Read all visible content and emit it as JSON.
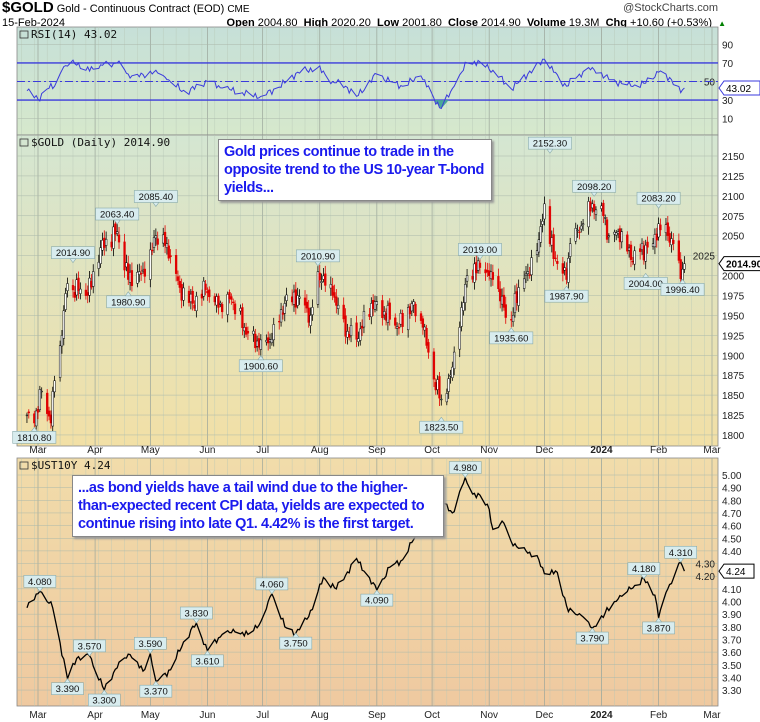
{
  "header": {
    "symbol": "$GOLD",
    "name": "Gold - Continuous Contract (EOD)",
    "exchange": "CME",
    "date": "15-Feb-2024",
    "watermark": "@StockCharts.com",
    "open_label": "Open",
    "open": "2004.80",
    "high_label": "High",
    "high": "2020.20",
    "low_label": "Low",
    "low": "2001.80",
    "close_label": "Close",
    "close": "2014.90",
    "volume_label": "Volume",
    "volume": "19.3M",
    "chg_label": "Chg",
    "chg": "+10.60 (+0.53%)",
    "up_color": "#008000"
  },
  "annotations": {
    "gold_note": "Gold prices continue to trade in the opposite trend to the US 10-year T-bond yields...",
    "yield_note": "...as bond yields have a tail wind due to the higher-than-expected recent CPI data, yields are expected to continue rising into late Q1. 4.42% is the first target."
  },
  "x_axis": {
    "ticks": [
      {
        "date": "2023-03-01",
        "label": "Mar"
      },
      {
        "date": "2023-04-01",
        "label": "Apr"
      },
      {
        "date": "2023-05-01",
        "label": "May"
      },
      {
        "date": "2023-06-01",
        "label": "Jun"
      },
      {
        "date": "2023-07-01",
        "label": "Jul"
      },
      {
        "date": "2023-08-01",
        "label": "Aug"
      },
      {
        "date": "2023-09-01",
        "label": "Sep"
      },
      {
        "date": "2023-10-01",
        "label": "Oct"
      },
      {
        "date": "2023-11-01",
        "label": "Nov"
      },
      {
        "date": "2023-12-01",
        "label": "Dec"
      },
      {
        "date": "2024-01-01",
        "label": "2024",
        "bold": true
      },
      {
        "date": "2024-02-01",
        "label": "Feb"
      },
      {
        "date": "2024-03-01",
        "label": "Mar"
      }
    ]
  },
  "chart_data": [
    {
      "type": "line",
      "title": "RSI(14) 43.02",
      "last_value": "43.02",
      "ylim": [
        0,
        100
      ],
      "yticks": [
        10,
        30,
        50,
        70,
        90
      ],
      "reference_lines": [
        70,
        50,
        30
      ],
      "line_color": "#3a3adc",
      "background": [
        "#c6e0d8",
        "#d6e8cc"
      ],
      "points": [
        [
          "2023-02-23",
          40
        ],
        [
          "2023-03-01",
          31
        ],
        [
          "2023-03-06",
          42
        ],
        [
          "2023-03-10",
          45
        ],
        [
          "2023-03-14",
          62
        ],
        [
          "2023-03-20",
          73
        ],
        [
          "2023-03-27",
          62
        ],
        [
          "2023-04-04",
          68
        ],
        [
          "2023-04-13",
          70
        ],
        [
          "2023-04-19",
          58
        ],
        [
          "2023-04-25",
          55
        ],
        [
          "2023-05-04",
          62
        ],
        [
          "2023-05-10",
          52
        ],
        [
          "2023-05-20",
          38
        ],
        [
          "2023-06-01",
          50
        ],
        [
          "2023-06-09",
          43
        ],
        [
          "2023-06-20",
          38
        ],
        [
          "2023-06-30",
          34
        ],
        [
          "2023-07-10",
          44
        ],
        [
          "2023-07-20",
          60
        ],
        [
          "2023-07-31",
          65
        ],
        [
          "2023-08-08",
          50
        ],
        [
          "2023-08-15",
          45
        ],
        [
          "2023-08-21",
          34
        ],
        [
          "2023-09-01",
          58
        ],
        [
          "2023-09-08",
          50
        ],
        [
          "2023-09-15",
          45
        ],
        [
          "2023-09-25",
          56
        ],
        [
          "2023-10-02",
          32
        ],
        [
          "2023-10-06",
          21
        ],
        [
          "2023-10-13",
          45
        ],
        [
          "2023-10-20",
          70
        ],
        [
          "2023-10-27",
          71
        ],
        [
          "2023-11-03",
          62
        ],
        [
          "2023-11-13",
          42
        ],
        [
          "2023-11-22",
          58
        ],
        [
          "2023-12-01",
          74
        ],
        [
          "2023-12-06",
          60
        ],
        [
          "2023-12-13",
          45
        ],
        [
          "2023-12-20",
          58
        ],
        [
          "2023-12-27",
          65
        ],
        [
          "2024-01-05",
          52
        ],
        [
          "2024-01-17",
          45
        ],
        [
          "2024-01-24",
          48
        ],
        [
          "2024-02-01",
          60
        ],
        [
          "2024-02-08",
          52
        ],
        [
          "2024-02-13",
          38
        ],
        [
          "2024-02-15",
          43.02
        ]
      ]
    },
    {
      "type": "candlestick",
      "title": "$GOLD (Daily) 2014.90",
      "last_value": "2014.90",
      "ylim": [
        1795,
        2170
      ],
      "yticks": [
        1800,
        1825,
        1850,
        1875,
        1900,
        1925,
        1950,
        1975,
        2000,
        2025,
        2050,
        2075,
        2100,
        2125,
        2150
      ],
      "up_color": "#000000",
      "down_color": "#e00000",
      "background": [
        "#d4e6d2",
        "#f2e0a6"
      ],
      "closes": [
        [
          "2023-02-23",
          1825
        ],
        [
          "2023-02-27",
          1815
        ],
        [
          "2023-03-03",
          1855
        ],
        [
          "2023-03-08",
          1815
        ],
        [
          "2023-03-10",
          1868
        ],
        [
          "2023-03-13",
          1912
        ],
        [
          "2023-03-17",
          1990
        ],
        [
          "2023-03-20",
          1982
        ],
        [
          "2023-03-24",
          1983
        ],
        [
          "2023-03-28",
          1975
        ],
        [
          "2023-04-04",
          2035
        ],
        [
          "2023-04-13",
          2055
        ],
        [
          "2023-04-19",
          1995
        ],
        [
          "2023-04-25",
          2005
        ],
        [
          "2023-04-28",
          1999
        ],
        [
          "2023-05-04",
          2050
        ],
        [
          "2023-05-10",
          2040
        ],
        [
          "2023-05-17",
          1985
        ],
        [
          "2023-05-24",
          1965
        ],
        [
          "2023-05-31",
          1982
        ],
        [
          "2023-06-07",
          1960
        ],
        [
          "2023-06-14",
          1970
        ],
        [
          "2023-06-21",
          1935
        ],
        [
          "2023-06-29",
          1910
        ],
        [
          "2023-07-06",
          1920
        ],
        [
          "2023-07-13",
          1965
        ],
        [
          "2023-07-20",
          1975
        ],
        [
          "2023-07-27",
          1950
        ],
        [
          "2023-07-31",
          2005
        ],
        [
          "2023-08-08",
          1975
        ],
        [
          "2023-08-16",
          1930
        ],
        [
          "2023-08-21",
          1920
        ],
        [
          "2023-08-29",
          1965
        ],
        [
          "2023-09-05",
          1955
        ],
        [
          "2023-09-13",
          1935
        ],
        [
          "2023-09-20",
          1965
        ],
        [
          "2023-09-26",
          1935
        ],
        [
          "2023-10-02",
          1870
        ],
        [
          "2023-10-06",
          1845
        ],
        [
          "2023-10-11",
          1875
        ],
        [
          "2023-10-16",
          1935
        ],
        [
          "2023-10-20",
          2000
        ],
        [
          "2023-10-27",
          2010
        ],
        [
          "2023-11-03",
          1995
        ],
        [
          "2023-11-09",
          1960
        ],
        [
          "2023-11-13",
          1945
        ],
        [
          "2023-11-17",
          1985
        ],
        [
          "2023-11-22",
          2005
        ],
        [
          "2023-11-28",
          2045
        ],
        [
          "2023-12-01",
          2090
        ],
        [
          "2023-12-04",
          2040
        ],
        [
          "2023-12-08",
          2015
        ],
        [
          "2023-12-13",
          1995
        ],
        [
          "2023-12-15",
          2040
        ],
        [
          "2023-12-22",
          2065
        ],
        [
          "2023-12-27",
          2090
        ],
        [
          "2024-01-02",
          2075
        ],
        [
          "2024-01-05",
          2050
        ],
        [
          "2024-01-12",
          2055
        ],
        [
          "2024-01-17",
          2020
        ],
        [
          "2024-01-22",
          2030
        ],
        [
          "2024-01-29",
          2040
        ],
        [
          "2024-02-01",
          2065
        ],
        [
          "2024-02-06",
          2050
        ],
        [
          "2024-02-09",
          2040
        ],
        [
          "2024-02-13",
          1996
        ],
        [
          "2024-02-15",
          2014.9
        ]
      ],
      "labels": [
        {
          "date": "2023-02-27",
          "value": "1810.80",
          "pos": "below"
        },
        {
          "date": "2023-03-20",
          "value": "2014.90",
          "pos": "above"
        },
        {
          "date": "2023-04-13",
          "value": "2063.40",
          "pos": "above"
        },
        {
          "date": "2023-04-19",
          "value": "1980.90",
          "pos": "below"
        },
        {
          "date": "2023-05-04",
          "value": "2085.40",
          "pos": "above"
        },
        {
          "date": "2023-06-30",
          "value": "1900.60",
          "pos": "below"
        },
        {
          "date": "2023-07-31",
          "value": "2010.90",
          "pos": "above"
        },
        {
          "date": "2023-10-06",
          "value": "1823.50",
          "pos": "below"
        },
        {
          "date": "2023-10-27",
          "value": "2019.00",
          "pos": "above"
        },
        {
          "date": "2023-11-13",
          "value": "1935.60",
          "pos": "below"
        },
        {
          "date": "2023-12-04",
          "value": "2152.30",
          "pos": "above"
        },
        {
          "date": "2023-12-13",
          "value": "1987.90",
          "pos": "below"
        },
        {
          "date": "2023-12-28",
          "value": "2098.20",
          "pos": "above"
        },
        {
          "date": "2024-01-25",
          "value": "2004.00",
          "pos": "below"
        },
        {
          "date": "2024-02-01",
          "value": "2083.20",
          "pos": "above"
        },
        {
          "date": "2024-02-14",
          "value": "1996.40",
          "pos": "below"
        }
      ]
    },
    {
      "type": "line",
      "title": "$UST10Y 4.24",
      "last_value": "4.24",
      "ylim": [
        3.25,
        5.05
      ],
      "yticks": [
        3.3,
        3.4,
        3.5,
        3.6,
        3.7,
        3.8,
        3.9,
        4.0,
        4.1,
        4.2,
        4.3,
        4.4,
        4.5,
        4.6,
        4.7,
        4.8,
        4.9,
        5.0
      ],
      "line_color": "#000000",
      "background": [
        "#f1dcaa",
        "#efc9a0"
      ],
      "points": [
        [
          "2023-02-23",
          3.95
        ],
        [
          "2023-03-02",
          4.08
        ],
        [
          "2023-03-09",
          3.95
        ],
        [
          "2023-03-17",
          3.39
        ],
        [
          "2023-03-22",
          3.55
        ],
        [
          "2023-03-29",
          3.57
        ],
        [
          "2023-04-06",
          3.3
        ],
        [
          "2023-04-14",
          3.52
        ],
        [
          "2023-04-20",
          3.58
        ],
        [
          "2023-04-27",
          3.45
        ],
        [
          "2023-05-01",
          3.59
        ],
        [
          "2023-05-04",
          3.37
        ],
        [
          "2023-05-12",
          3.46
        ],
        [
          "2023-05-19",
          3.68
        ],
        [
          "2023-05-26",
          3.83
        ],
        [
          "2023-06-01",
          3.61
        ],
        [
          "2023-06-09",
          3.74
        ],
        [
          "2023-06-16",
          3.76
        ],
        [
          "2023-06-23",
          3.74
        ],
        [
          "2023-06-30",
          3.84
        ],
        [
          "2023-07-06",
          4.06
        ],
        [
          "2023-07-13",
          3.8
        ],
        [
          "2023-07-19",
          3.75
        ],
        [
          "2023-07-26",
          3.88
        ],
        [
          "2023-08-03",
          4.19
        ],
        [
          "2023-08-10",
          4.1
        ],
        [
          "2023-08-21",
          4.34
        ],
        [
          "2023-08-25",
          4.24
        ],
        [
          "2023-09-01",
          4.09
        ],
        [
          "2023-09-08",
          4.27
        ],
        [
          "2023-09-15",
          4.33
        ],
        [
          "2023-09-21",
          4.49
        ],
        [
          "2023-09-28",
          4.59
        ],
        [
          "2023-10-03",
          4.8
        ],
        [
          "2023-10-06",
          4.78
        ],
        [
          "2023-10-12",
          4.7
        ],
        [
          "2023-10-19",
          4.98
        ],
        [
          "2023-10-23",
          4.85
        ],
        [
          "2023-10-27",
          4.84
        ],
        [
          "2023-11-01",
          4.73
        ],
        [
          "2023-11-03",
          4.57
        ],
        [
          "2023-11-09",
          4.62
        ],
        [
          "2023-11-14",
          4.44
        ],
        [
          "2023-11-21",
          4.4
        ],
        [
          "2023-11-28",
          4.33
        ],
        [
          "2023-12-01",
          4.22
        ],
        [
          "2023-12-08",
          4.23
        ],
        [
          "2023-12-14",
          3.92
        ],
        [
          "2023-12-21",
          3.89
        ],
        [
          "2023-12-27",
          3.79
        ],
        [
          "2024-01-03",
          3.91
        ],
        [
          "2024-01-10",
          4.02
        ],
        [
          "2024-01-17",
          4.1
        ],
        [
          "2024-01-24",
          4.18
        ],
        [
          "2024-01-30",
          4.05
        ],
        [
          "2024-02-01",
          3.87
        ],
        [
          "2024-02-06",
          4.1
        ],
        [
          "2024-02-09",
          4.18
        ],
        [
          "2024-02-13",
          4.31
        ],
        [
          "2024-02-15",
          4.24
        ]
      ],
      "labels": [
        {
          "date": "2023-03-02",
          "value": "4.080",
          "pos": "above"
        },
        {
          "date": "2023-03-17",
          "value": "3.390",
          "pos": "below"
        },
        {
          "date": "2023-03-29",
          "value": "3.570",
          "pos": "above"
        },
        {
          "date": "2023-04-06",
          "value": "3.300",
          "pos": "below"
        },
        {
          "date": "2023-05-01",
          "value": "3.590",
          "pos": "above"
        },
        {
          "date": "2023-05-04",
          "value": "3.370",
          "pos": "below"
        },
        {
          "date": "2023-05-26",
          "value": "3.830",
          "pos": "above"
        },
        {
          "date": "2023-06-01",
          "value": "3.610",
          "pos": "below"
        },
        {
          "date": "2023-07-06",
          "value": "4.060",
          "pos": "above"
        },
        {
          "date": "2023-07-19",
          "value": "3.750",
          "pos": "below"
        },
        {
          "date": "2023-09-01",
          "value": "4.090",
          "pos": "below"
        },
        {
          "date": "2023-10-19",
          "value": "4.980",
          "pos": "above"
        },
        {
          "date": "2023-12-27",
          "value": "3.790",
          "pos": "below"
        },
        {
          "date": "2024-01-24",
          "value": "4.180",
          "pos": "above"
        },
        {
          "date": "2024-02-01",
          "value": "3.870",
          "pos": "below"
        },
        {
          "date": "2024-02-13",
          "value": "4.310",
          "pos": "above"
        }
      ]
    }
  ]
}
